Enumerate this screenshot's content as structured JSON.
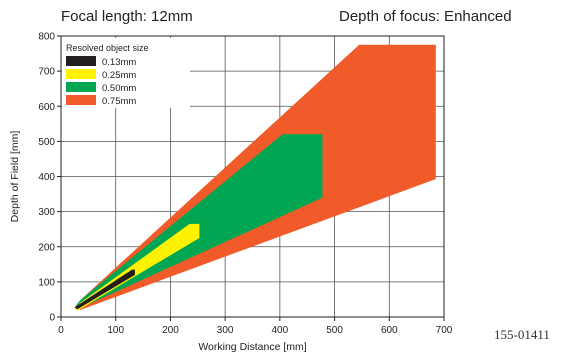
{
  "header": {
    "focal_length": "Focal length: 12mm",
    "depth_of_focus": "Depth of focus: Enhanced"
  },
  "doc_id": "155-01411",
  "chart_data": {
    "type": "area",
    "title": "",
    "xlabel": "Working Distance [mm]",
    "ylabel": "Depth of Field [mm]",
    "xlim": [
      0,
      700
    ],
    "ylim": [
      0,
      800
    ],
    "xticks": [
      0,
      100,
      200,
      300,
      400,
      500,
      600,
      700
    ],
    "yticks": [
      0,
      100,
      200,
      300,
      400,
      500,
      600,
      700,
      800
    ],
    "grid": true,
    "legend": {
      "title": "Resolved object size",
      "placement": "top-left"
    },
    "series": [
      {
        "name": "0.75mm",
        "color": "#F15A29",
        "polygon": [
          [
            25,
            28
          ],
          [
            40,
            55
          ],
          [
            545,
            775
          ],
          [
            685,
            775
          ],
          [
            685,
            393
          ],
          [
            35,
            20
          ]
        ]
      },
      {
        "name": "0.50mm",
        "color": "#00A651",
        "polygon": [
          [
            25,
            28
          ],
          [
            35,
            48
          ],
          [
            405,
            520
          ],
          [
            478,
            520
          ],
          [
            478,
            340
          ],
          [
            30,
            22
          ]
        ]
      },
      {
        "name": "0.25mm",
        "color": "#FFF200",
        "polygon": [
          [
            25,
            25
          ],
          [
            35,
            40
          ],
          [
            235,
            265
          ],
          [
            253,
            265
          ],
          [
            253,
            225
          ],
          [
            30,
            18
          ]
        ]
      },
      {
        "name": "0.13mm",
        "color": "#231F20",
        "polygon": [
          [
            25,
            27
          ],
          [
            32,
            35
          ],
          [
            130,
            135
          ],
          [
            135,
            135
          ],
          [
            135,
            120
          ],
          [
            30,
            22
          ]
        ]
      }
    ]
  }
}
